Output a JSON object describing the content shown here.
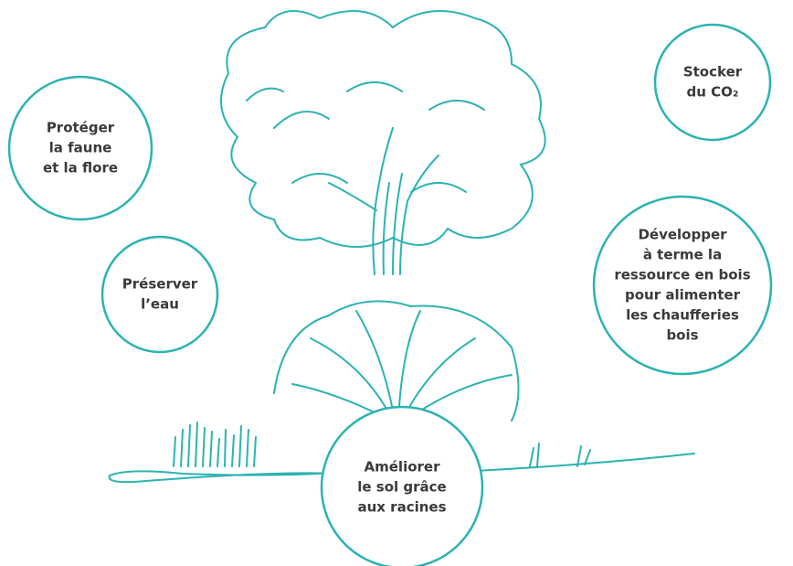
{
  "circles": [
    {
      "lines": [
        "Protéger",
        "la faune",
        "et la flore"
      ]
    },
    {
      "lines": [
        "Stocker",
        "du CO₂"
      ]
    },
    {
      "lines": [
        "Préserver",
        "l’eau"
      ]
    },
    {
      "lines": [
        "Développer",
        "à terme la",
        "ressource en bois",
        "pour alimenter",
        "les chaufferies",
        "bois"
      ]
    },
    {
      "lines": [
        "Améliorer",
        "le sol grâce",
        "aux racines"
      ]
    }
  ]
}
